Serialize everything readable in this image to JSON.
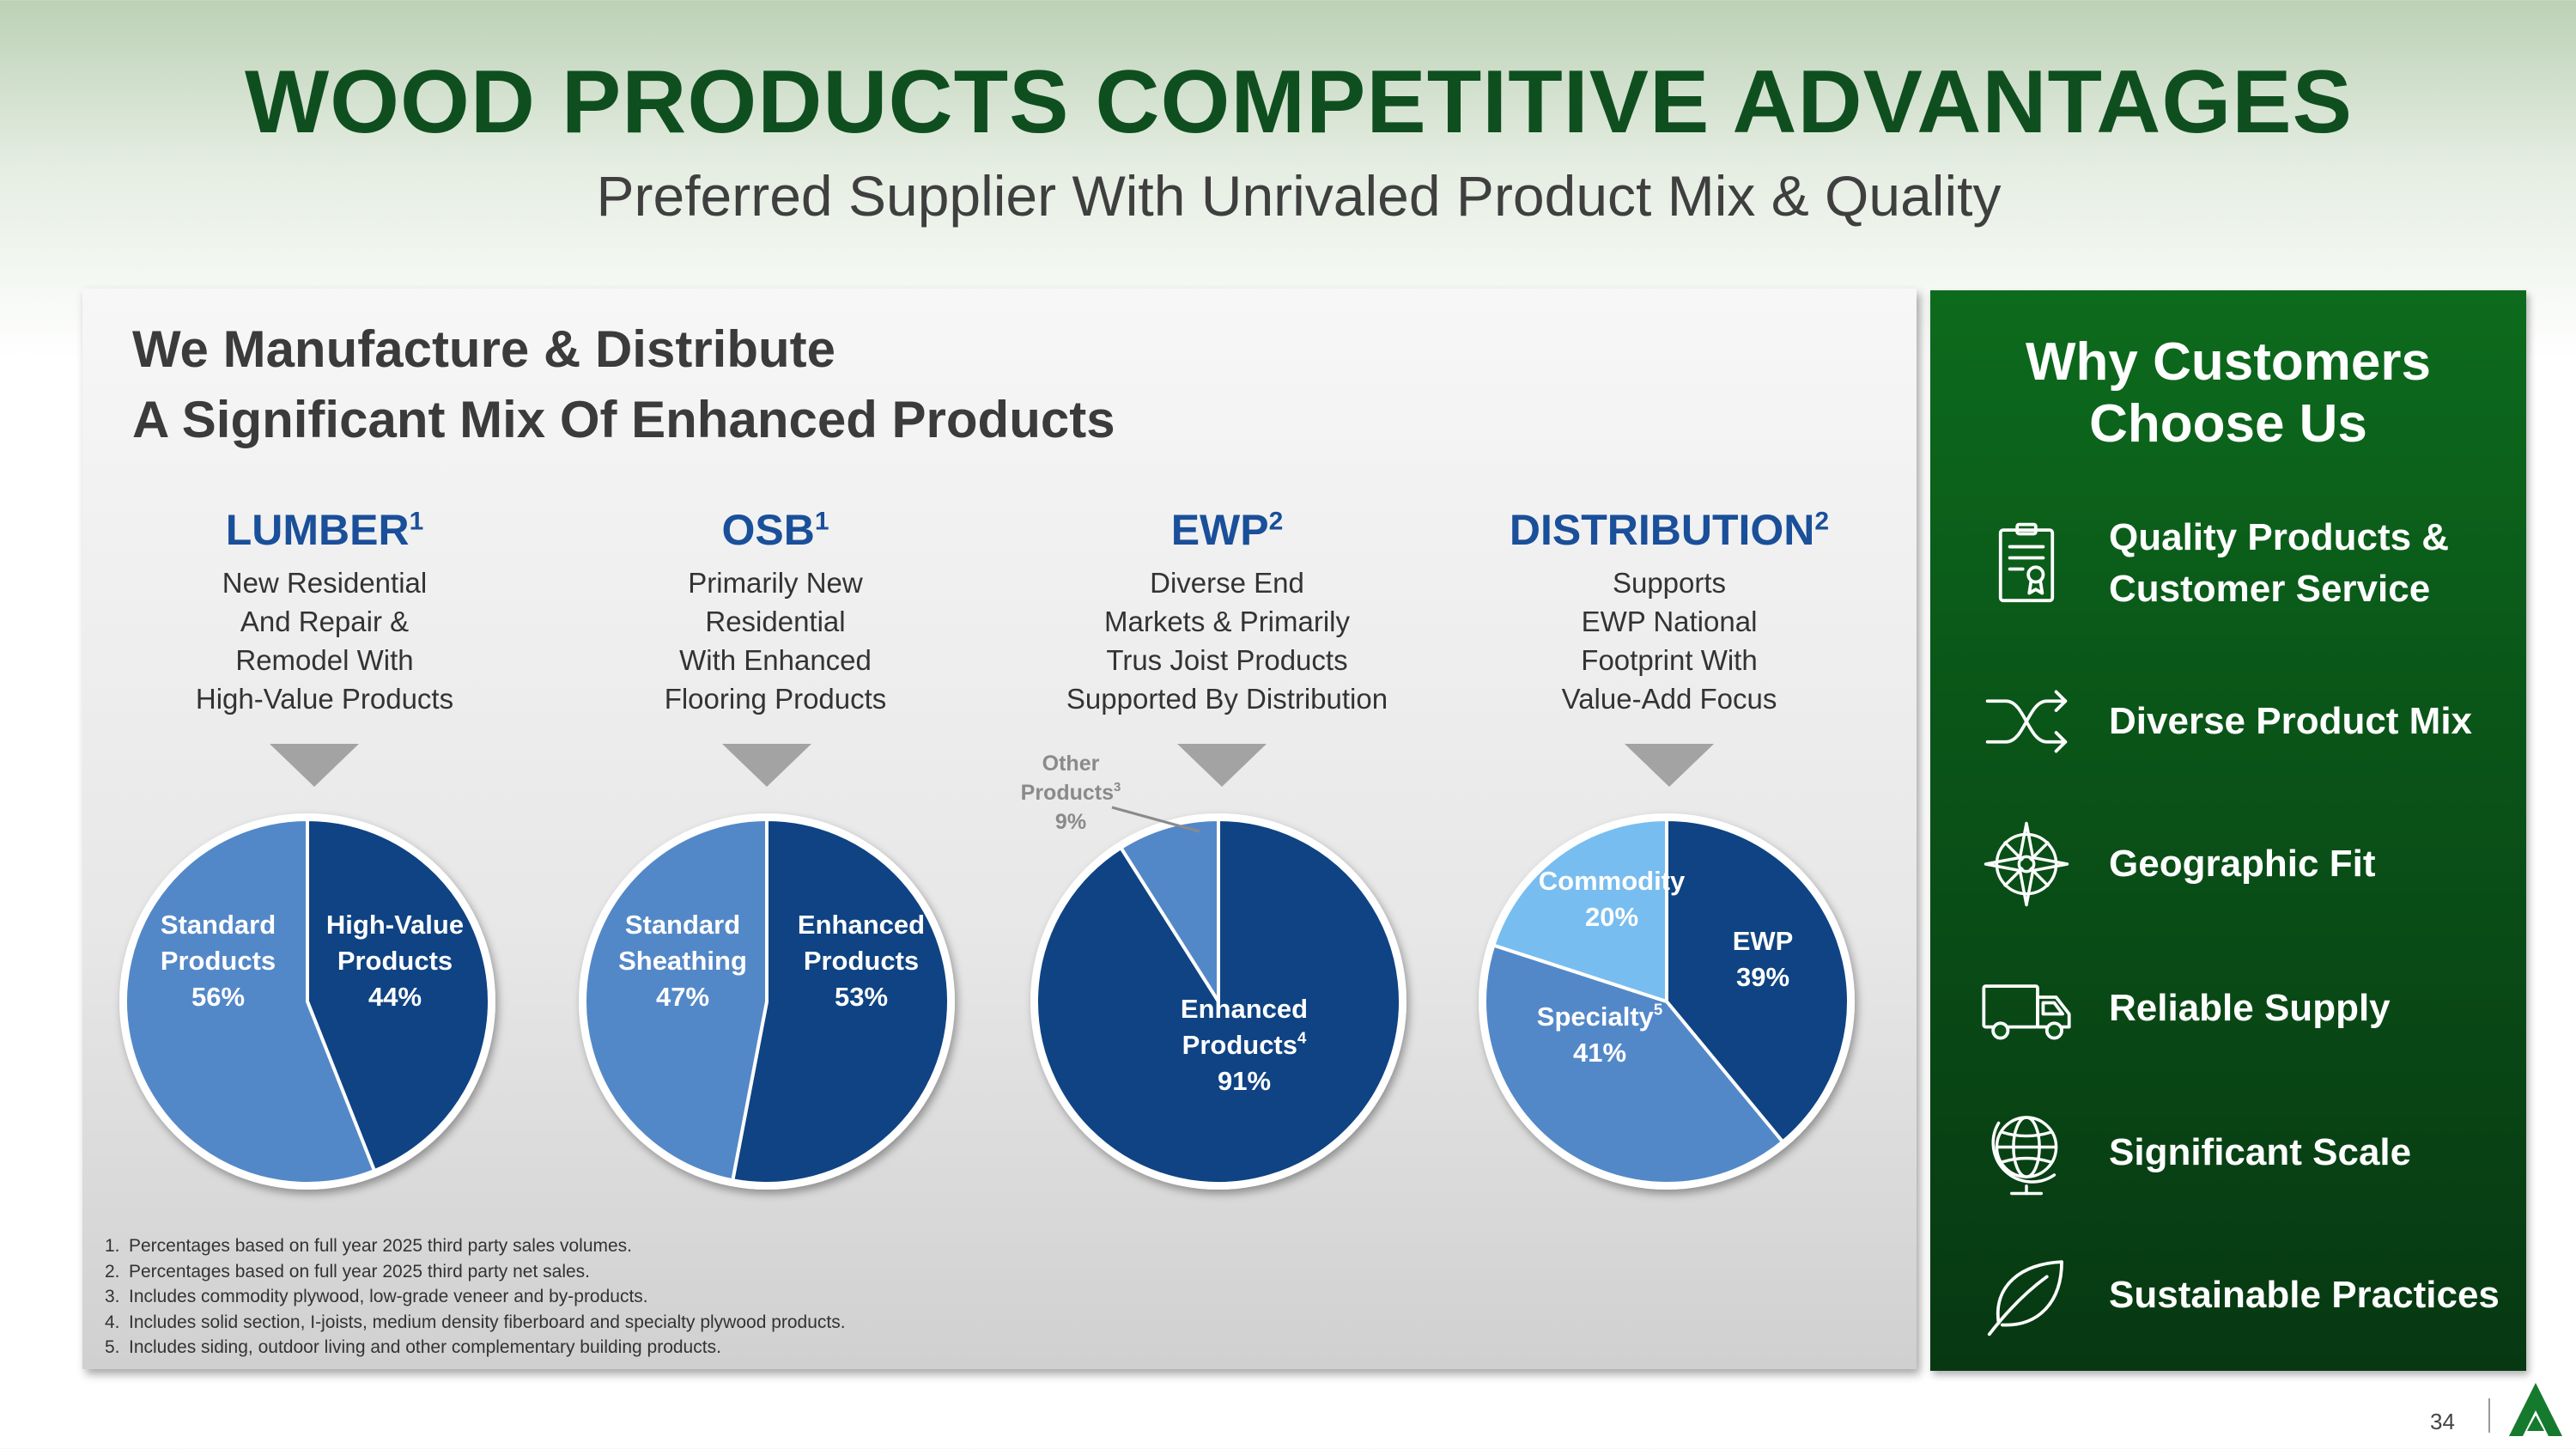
{
  "header": {
    "title": "WOOD PRODUCTS COMPETITIVE ADVANTAGES",
    "subtitle": "Preferred Supplier With Unrivaled Product Mix & Quality"
  },
  "left_panel": {
    "heading_line1": "We Manufacture & Distribute",
    "heading_line2": "A Significant Mix Of Enhanced Products",
    "columns": [
      {
        "title": "LUMBER",
        "sup": "1",
        "desc": [
          "New Residential",
          "And Repair &",
          "Remodel With",
          "High-Value Products"
        ]
      },
      {
        "title": "OSB",
        "sup": "1",
        "desc": [
          "Primarily New",
          "Residential",
          "With Enhanced",
          "Flooring Products"
        ]
      },
      {
        "title": "EWP",
        "sup": "2",
        "desc": [
          "Diverse End",
          "Markets & Primarily",
          "Trus Joist Products",
          "Supported By Distribution"
        ]
      },
      {
        "title": "DISTRIBUTION",
        "sup": "2",
        "desc": [
          "Supports",
          "EWP National",
          "Footprint With",
          "Value-Add Focus"
        ]
      }
    ],
    "footnotes": [
      {
        "n": "1.",
        "text": "Percentages based on full year 2025 third party sales volumes."
      },
      {
        "n": "2.",
        "text": "Percentages based on full year 2025 third party net sales."
      },
      {
        "n": "3.",
        "text": "Includes commodity plywood, low-grade veneer and by-products."
      },
      {
        "n": "4.",
        "text": "Includes solid section, I-joists, medium density fiberboard and specialty plywood products."
      },
      {
        "n": "5.",
        "text": "Includes siding, outdoor living and other complementary building products."
      }
    ]
  },
  "chart_data": [
    {
      "type": "pie",
      "title": "LUMBER",
      "slices": [
        {
          "label": "High-Value Products",
          "value": 44,
          "label_text": "44%",
          "color": "#0f4383"
        },
        {
          "label": "Standard Products",
          "value": 56,
          "label_text": "56%",
          "color": "#5388c8"
        }
      ]
    },
    {
      "type": "pie",
      "title": "OSB",
      "slices": [
        {
          "label": "Enhanced Products",
          "value": 53,
          "label_text": "53%",
          "color": "#0f4383"
        },
        {
          "label": "Standard Sheathing",
          "value": 47,
          "label_text": "47%",
          "color": "#5388c8"
        }
      ]
    },
    {
      "type": "pie",
      "title": "EWP",
      "slices": [
        {
          "label": "Enhanced Products",
          "sup": "4",
          "value": 91,
          "label_text": "91%",
          "color": "#0f4383"
        },
        {
          "label": "Other Products",
          "sup": "3",
          "value": 9,
          "label_text": "9%",
          "color": "#5388c8"
        }
      ]
    },
    {
      "type": "pie",
      "title": "DISTRIBUTION",
      "slices": [
        {
          "label": "EWP",
          "value": 39,
          "label_text": "39%",
          "color": "#0f4383"
        },
        {
          "label": "Specialty",
          "sup": "5",
          "value": 41,
          "label_text": "41%",
          "color": "#5388c8"
        },
        {
          "label": "Commodity",
          "value": 20,
          "label_text": "20%",
          "color": "#78bdf0"
        }
      ]
    }
  ],
  "right_panel": {
    "title_line1": "Why Customers",
    "title_line2": "Choose Us",
    "items": [
      {
        "icon": "certificate-icon",
        "label_line1": "Quality Products &",
        "label_line2": "Customer Service"
      },
      {
        "icon": "shuffle-icon",
        "label_line1": "Diverse Product Mix",
        "label_line2": ""
      },
      {
        "icon": "compass-icon",
        "label_line1": "Geographic Fit",
        "label_line2": ""
      },
      {
        "icon": "truck-icon",
        "label_line1": "Reliable Supply",
        "label_line2": ""
      },
      {
        "icon": "globe-icon",
        "label_line1": "Significant Scale",
        "label_line2": ""
      },
      {
        "icon": "leaf-icon",
        "label_line1": "Sustainable Practices",
        "label_line2": ""
      }
    ]
  },
  "footer": {
    "page_number": "34",
    "logo": "company-logo-icon"
  }
}
